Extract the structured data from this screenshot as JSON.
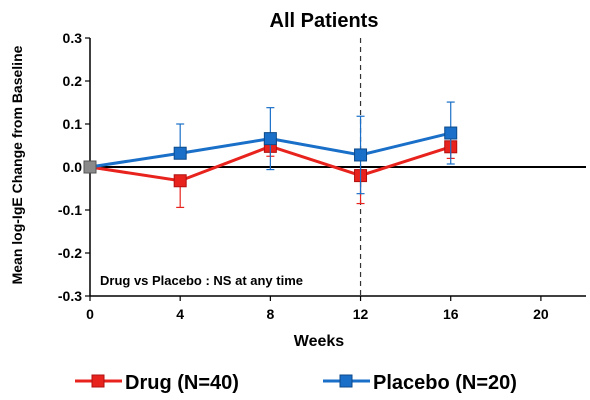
{
  "chart_data": {
    "type": "line",
    "title": "All Patients",
    "xlabel": "Weeks",
    "ylabel": "Mean  log-IgE  Change from Baseline",
    "xlim": [
      0,
      22
    ],
    "ylim": [
      -0.3,
      0.3
    ],
    "xticks": [
      "0",
      "4",
      "8",
      "12",
      "16",
      "20"
    ],
    "yticks": [
      "0.3",
      "0.2",
      "0.1",
      "0.0",
      "-0.1",
      "-0.2",
      "-0.3"
    ],
    "xtick_values": [
      0,
      4,
      8,
      12,
      16,
      20
    ],
    "ytick_values": [
      0.3,
      0.2,
      0.1,
      0.0,
      -0.1,
      -0.2,
      -0.3
    ],
    "vline_x": 12,
    "annotation": "Drug vs Placebo : NS at any time",
    "legend_placement": "bottom",
    "series": [
      {
        "name": "Drug (N=40)",
        "color": "#e8231d",
        "x": [
          0,
          4,
          8,
          12,
          16
        ],
        "y": [
          0.0,
          -0.032,
          0.048,
          -0.02,
          0.047
        ],
        "error_up": [
          0.0,
          0.0,
          0.0,
          0.0,
          0.0
        ],
        "error_down": [
          0.0,
          0.062,
          0.023,
          0.065,
          0.027
        ]
      },
      {
        "name": "Placebo (N=20)",
        "color": "#1a6fc8",
        "x": [
          0,
          4,
          8,
          12,
          16
        ],
        "y": [
          0.0,
          0.032,
          0.066,
          0.028,
          0.079
        ],
        "error_up": [
          0.0,
          0.068,
          0.072,
          0.09,
          0.072
        ],
        "error_down": [
          0.0,
          0.0,
          0.072,
          0.09,
          0.072
        ]
      }
    ]
  }
}
